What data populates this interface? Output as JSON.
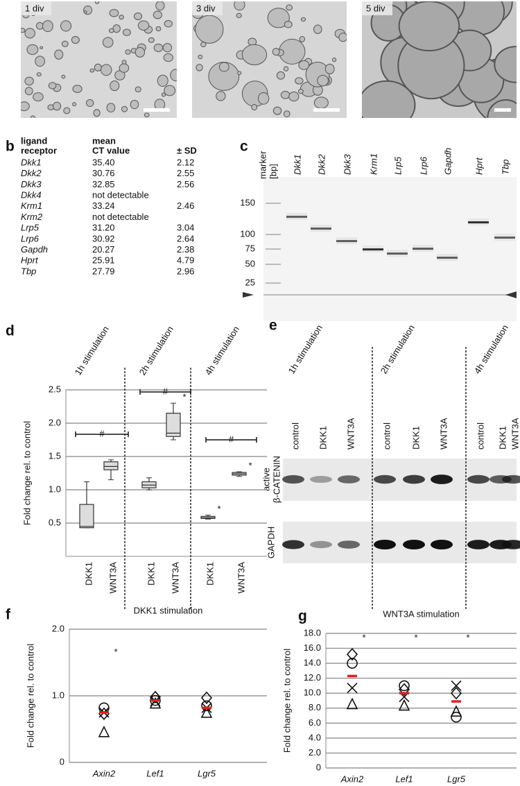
{
  "panel_labels": [
    "a",
    "b",
    "c",
    "d",
    "e",
    "f",
    "g"
  ],
  "micrographs": [
    "1 div",
    "3 div",
    "5 div"
  ],
  "table": {
    "header": [
      [
        "ligand",
        "receptor"
      ],
      [
        "mean",
        "CT value"
      ],
      [
        "± SD"
      ]
    ],
    "rows": [
      [
        "Dkk1",
        "35.40",
        "2.12"
      ],
      [
        "Dkk2",
        "30.76",
        "2.55"
      ],
      [
        "Dkk3",
        "32.85",
        "2.56"
      ],
      [
        "Dkk4",
        "not detectable"
      ],
      [
        "Krm1",
        "33.24",
        "2.46"
      ],
      [
        "Krm2",
        "not detectable"
      ],
      [
        "Lrp5",
        "31.20",
        "3.04"
      ],
      [
        "Lrp6",
        "30.92",
        "2.64"
      ],
      [
        "Gapdh",
        "20.27",
        "2.38"
      ],
      [
        "Hprt",
        "25.91",
        "4.79"
      ],
      [
        "Tbp",
        "27.79",
        "2.96"
      ]
    ]
  },
  "gel": {
    "marker_label": [
      "marker",
      "[bp]"
    ],
    "lanes": [
      "Dkk1",
      "Dkk2",
      "Dkk3",
      "Krm1",
      "Lrp5",
      "Lrp6",
      "Gapdh",
      "Hprt",
      "Tbp"
    ],
    "marker_ticks": [
      150,
      100,
      75,
      50,
      25
    ]
  },
  "blot": {
    "groups": [
      "1h stimulation",
      "2h stimulation",
      "4h stimulation"
    ],
    "lanes": [
      "control",
      "DKK1",
      "WNT3A",
      "control",
      "DKK1",
      "WNT3A",
      "control",
      "DKK1",
      "WNT3A"
    ],
    "rows": [
      [
        "active",
        "β-CATENIN"
      ],
      [
        "GAPDH"
      ]
    ]
  },
  "chart_data": [
    {
      "type": "box",
      "ylabel": "Fold change rel. to control",
      "groups": [
        "1h stimulation",
        "2h stimulation",
        "4h stimulation"
      ],
      "group_marks": [
        "#",
        "#",
        "#"
      ],
      "categories": [
        "DKK1",
        "WNT3A",
        "DKK1",
        "WNT3A",
        "DKK1",
        "WNT3A"
      ],
      "boxes": [
        {
          "min": 0.43,
          "q1": 0.43,
          "median": 0.45,
          "q3": 0.78,
          "max": 1.12
        },
        {
          "min": 1.15,
          "q1": 1.3,
          "median": 1.35,
          "q3": 1.42,
          "max": 1.45
        },
        {
          "min": 1.0,
          "q1": 1.03,
          "median": 1.07,
          "q3": 1.12,
          "max": 1.18
        },
        {
          "min": 1.75,
          "q1": 1.8,
          "median": 1.85,
          "q3": 2.15,
          "max": 2.3
        },
        {
          "min": 0.56,
          "q1": 0.57,
          "median": 0.58,
          "q3": 0.6,
          "max": 0.62
        },
        {
          "min": 1.2,
          "q1": 1.22,
          "median": 1.24,
          "q3": 1.26,
          "max": 1.27
        }
      ],
      "box_marks": [
        null,
        null,
        null,
        "*",
        "*",
        "*"
      ],
      "color": "#dddddd",
      "ylim": [
        0,
        2.5
      ],
      "yticks": [
        0.5,
        {
          "value": 1,
          "label": "1.0"
        },
        1.5,
        {
          "value": 2,
          "label": "2.0"
        },
        2.5
      ],
      "grid": true
    },
    {
      "type": "dot",
      "title": "DKK1 stimulation",
      "ylabel": "Fold change rel. to control",
      "categories": [
        "Axin2",
        "Lef1",
        "Lgr5"
      ],
      "series": [
        {
          "marker": "circle",
          "values": [
            0.82,
            0.93,
            0.85
          ]
        },
        {
          "marker": "diamond",
          "values": [
            0.73,
            0.98,
            0.97
          ]
        },
        {
          "marker": "cross",
          "values": [
            0.75,
            0.92,
            0.82
          ]
        },
        {
          "marker": "triangle",
          "values": [
            0.45,
            0.88,
            0.74
          ]
        }
      ],
      "mean": {
        "color": "#e02020",
        "values": [
          0.75,
          0.93,
          0.82
        ]
      },
      "significance": [
        "*",
        null,
        null
      ],
      "ylim": [
        0,
        2
      ],
      "yticks": [
        0,
        {
          "value": 1,
          "label": "1.0"
        },
        {
          "value": 2,
          "label": "2.0"
        }
      ],
      "grid": true
    },
    {
      "type": "dot",
      "title": "WNT3A stimulation",
      "ylabel": "Fold change rel. to control",
      "categories": [
        "Axin2",
        "Lef1",
        "Lgr5"
      ],
      "series": [
        {
          "marker": "circle",
          "values": [
            14.0,
            11.0,
            6.8
          ]
        },
        {
          "marker": "diamond",
          "values": [
            15.2,
            10.5,
            10.0
          ]
        },
        {
          "marker": "cross",
          "values": [
            10.7,
            9.5,
            11.0
          ]
        },
        {
          "marker": "triangle",
          "values": [
            8.5,
            8.3,
            7.5
          ]
        }
      ],
      "mean": {
        "color": "#e02020",
        "values": [
          12.3,
          10.0,
          8.9
        ]
      },
      "significance": [
        "*",
        "*",
        "*"
      ],
      "ylim": [
        0,
        18
      ],
      "yticks": [
        0,
        {
          "value": 2,
          "label": "2.0"
        },
        {
          "value": 4,
          "label": "4.0"
        },
        {
          "value": 6,
          "label": "6.0"
        },
        {
          "value": 8,
          "label": "8.0"
        },
        {
          "value": 10,
          "label": "10.0"
        },
        {
          "value": 12,
          "label": "12.0"
        },
        {
          "value": 14,
          "label": "14.0"
        },
        {
          "value": 16,
          "label": "16.0"
        },
        {
          "value": 18,
          "label": "18.0"
        }
      ],
      "grid": true
    }
  ]
}
